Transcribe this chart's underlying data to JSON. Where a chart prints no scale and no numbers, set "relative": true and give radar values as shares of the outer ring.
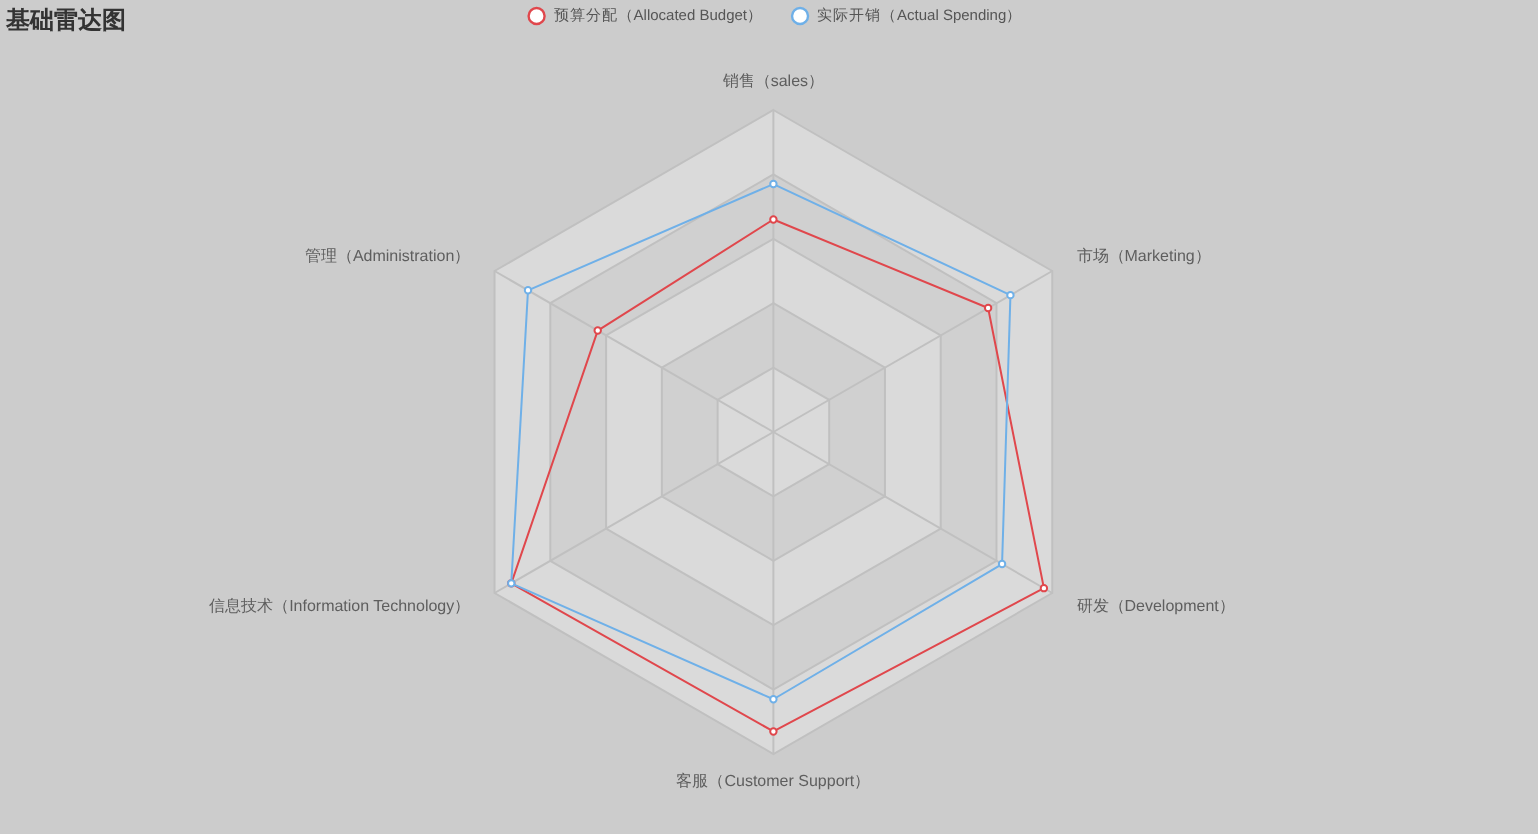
{
  "chart_data": {
    "type": "radar",
    "title": "基础雷达图",
    "relative": true,
    "grid": true,
    "legend": "top",
    "marker": "circle",
    "categories": [
      "销售（sales）",
      "市场（Marketing）",
      "研发（Development）",
      "客服（Customer Support）",
      "信息技术（Information Technology）",
      "管理（Administration）"
    ],
    "series": [
      {
        "name": "预算分配（Allocated Budget）",
        "color": "#e0474c",
        "values": [
          0.66,
          0.77,
          0.97,
          0.93,
          0.94,
          0.63
        ]
      },
      {
        "name": "实际开销（Actual Spending）",
        "color": "#6fb0e8",
        "values": [
          0.77,
          0.85,
          0.82,
          0.83,
          0.94,
          0.88
        ]
      }
    ]
  }
}
